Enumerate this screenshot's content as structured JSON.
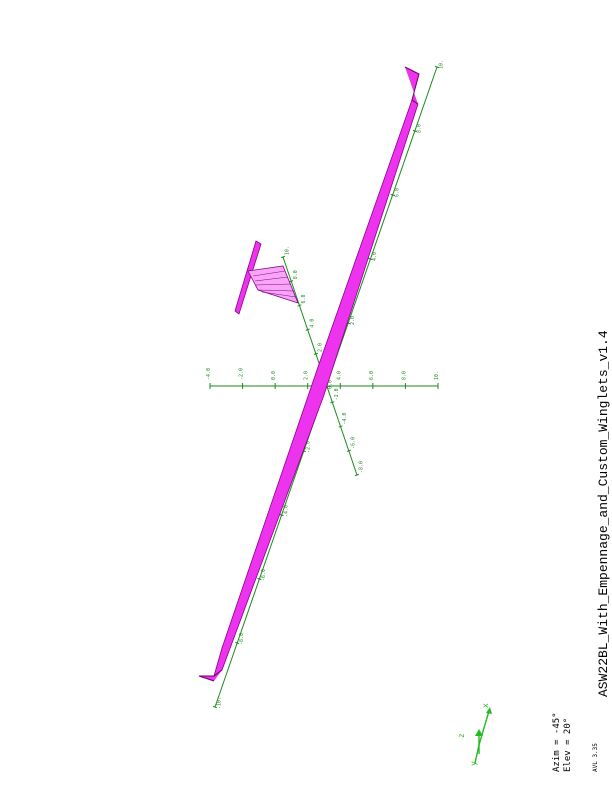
{
  "title": "ASW22BL_With_Empennage_and_Custom_Winglets_v1.4",
  "view": {
    "azim_label": "Azim = -45°",
    "elev_label": "Elev = 20°"
  },
  "version": "AVL 3.35",
  "colors": {
    "axes": "#1b8a1b",
    "surface": "#ee33ee",
    "surface_edge": "#8a008a",
    "triad": "#22bb22"
  },
  "axes": {
    "y_ticks": [
      "-10.",
      "-8.0",
      "-6.0",
      "-4.0",
      "-2.0",
      "0.0",
      "2.0",
      "4.0",
      "6.0",
      "8.0",
      "10."
    ],
    "x_ticks": [
      "-8.0",
      "-6.0",
      "-4.0",
      "-2.0",
      "0.0",
      "2.0",
      "4.0",
      "6.0",
      "8.0",
      "10."
    ],
    "z_ticks": [
      "-4.0",
      "-2.0",
      "0.0",
      "2.0",
      "4.0",
      "6.0",
      "8.0",
      "10."
    ]
  },
  "triad": {
    "x": "x",
    "y": "y",
    "z": "z"
  }
}
